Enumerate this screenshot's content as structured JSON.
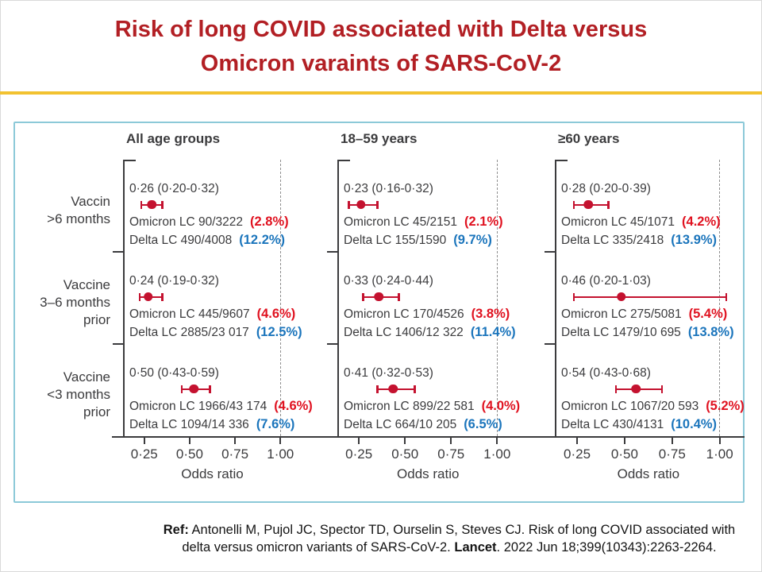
{
  "title": {
    "line1": "Risk of long COVID associated with Delta versus",
    "line2": "Omicron varaints of SARS-CoV-2"
  },
  "reference": {
    "label": "Ref:",
    "part1": " Antonelli M, Pujol JC, Spector TD, Ourselin S, Steves CJ. Risk of long COVID associated with delta versus omicron variants of SARS-CoV-2. ",
    "journal": "Lancet",
    "part2": ". 2022 Jun 18;399(10343):2263-2264."
  },
  "chart_data": {
    "type": "scatter",
    "subtype": "forest-plot",
    "xlabel": "Odds ratio",
    "x_ticks": [
      "0·25",
      "0·50",
      "0·75",
      "1·00"
    ],
    "x_tick_values": [
      0.25,
      0.5,
      0.75,
      1.0
    ],
    "xlim": [
      0.13,
      1.27
    ],
    "reference_line": 1.0,
    "grid": false,
    "row_labels": [
      [
        "Vaccin",
        ">6 months"
      ],
      [
        "Vaccine",
        "3–6 months",
        "prior"
      ],
      [
        "Vaccine",
        "<3 months",
        "prior"
      ]
    ],
    "groups": [
      {
        "header": "All age groups",
        "rows": [
          {
            "estimate_label": "0·26 (0·20-0·32)",
            "est": 0.26,
            "lo": 0.2,
            "hi": 0.32,
            "omicron": "Omicron LC 90/3222",
            "omicron_pct": "(2.8%)",
            "delta": "Delta LC 490/4008",
            "delta_pct": "(12.2%)"
          },
          {
            "estimate_label": "0·24 (0·19-0·32)",
            "est": 0.24,
            "lo": 0.19,
            "hi": 0.32,
            "omicron": "Omicron LC 445/9607",
            "omicron_pct": "(4.6%)",
            "delta": "Delta LC 2885/23 017",
            "delta_pct": "(12.5%)"
          },
          {
            "estimate_label": "0·50 (0·43-0·59)",
            "est": 0.5,
            "lo": 0.43,
            "hi": 0.59,
            "omicron": "Omicron LC 1966/43 174",
            "omicron_pct": "(4.6%)",
            "delta": "Delta LC 1094/14 336",
            "delta_pct": "(7.6%)"
          }
        ]
      },
      {
        "header": "18–59 years",
        "rows": [
          {
            "estimate_label": "0·23 (0·16-0·32)",
            "est": 0.23,
            "lo": 0.16,
            "hi": 0.32,
            "omicron": "Omicron LC 45/2151",
            "omicron_pct": "(2.1%)",
            "delta": "Delta LC 155/1590",
            "delta_pct": "(9.7%)"
          },
          {
            "estimate_label": "0·33 (0·24-0·44)",
            "est": 0.33,
            "lo": 0.24,
            "hi": 0.44,
            "omicron": "Omicron LC 170/4526",
            "omicron_pct": "(3.8%)",
            "delta": "Delta LC 1406/12 322",
            "delta_pct": "(11.4%)"
          },
          {
            "estimate_label": "0·41 (0·32-0·53)",
            "est": 0.41,
            "lo": 0.32,
            "hi": 0.53,
            "omicron": "Omicron LC 899/22 581",
            "omicron_pct": "(4.0%)",
            "delta": "Delta LC 664/10 205",
            "delta_pct": "(6.5%)"
          }
        ]
      },
      {
        "header": "≥60 years",
        "rows": [
          {
            "estimate_label": "0·28 (0·20-0·39)",
            "est": 0.28,
            "lo": 0.2,
            "hi": 0.39,
            "omicron": "Omicron LC 45/1071",
            "omicron_pct": "(4.2%)",
            "delta": "Delta LC 335/2418",
            "delta_pct": "(13.9%)"
          },
          {
            "estimate_label": "0·46 (0·20-1·03)",
            "est": 0.46,
            "lo": 0.2,
            "hi": 1.03,
            "omicron": "Omicron LC 275/5081",
            "omicron_pct": "(5.4%)",
            "delta": "Delta LC 1479/10 695",
            "delta_pct": "(13.8%)"
          },
          {
            "estimate_label": "0·54 (0·43-0·68)",
            "est": 0.54,
            "lo": 0.43,
            "hi": 0.68,
            "omicron": "Omicron LC 1067/20 593",
            "omicron_pct": "(5.2%)",
            "delta": "Delta LC 430/4131",
            "delta_pct": "(10.4%)"
          }
        ]
      }
    ],
    "colors": {
      "marker": "#C4122F",
      "omicron_pct": "#E01220",
      "delta_pct": "#1B75BC",
      "text": "#3B3B3D",
      "box_border": "#8CC9D8",
      "title": "#B21F24",
      "divider": "#F2C230",
      "reference_line": "#8E8E8E"
    },
    "legend_position": "none",
    "title": "Risk of long COVID associated with Delta versus Omicron varaints of SARS-CoV-2"
  }
}
